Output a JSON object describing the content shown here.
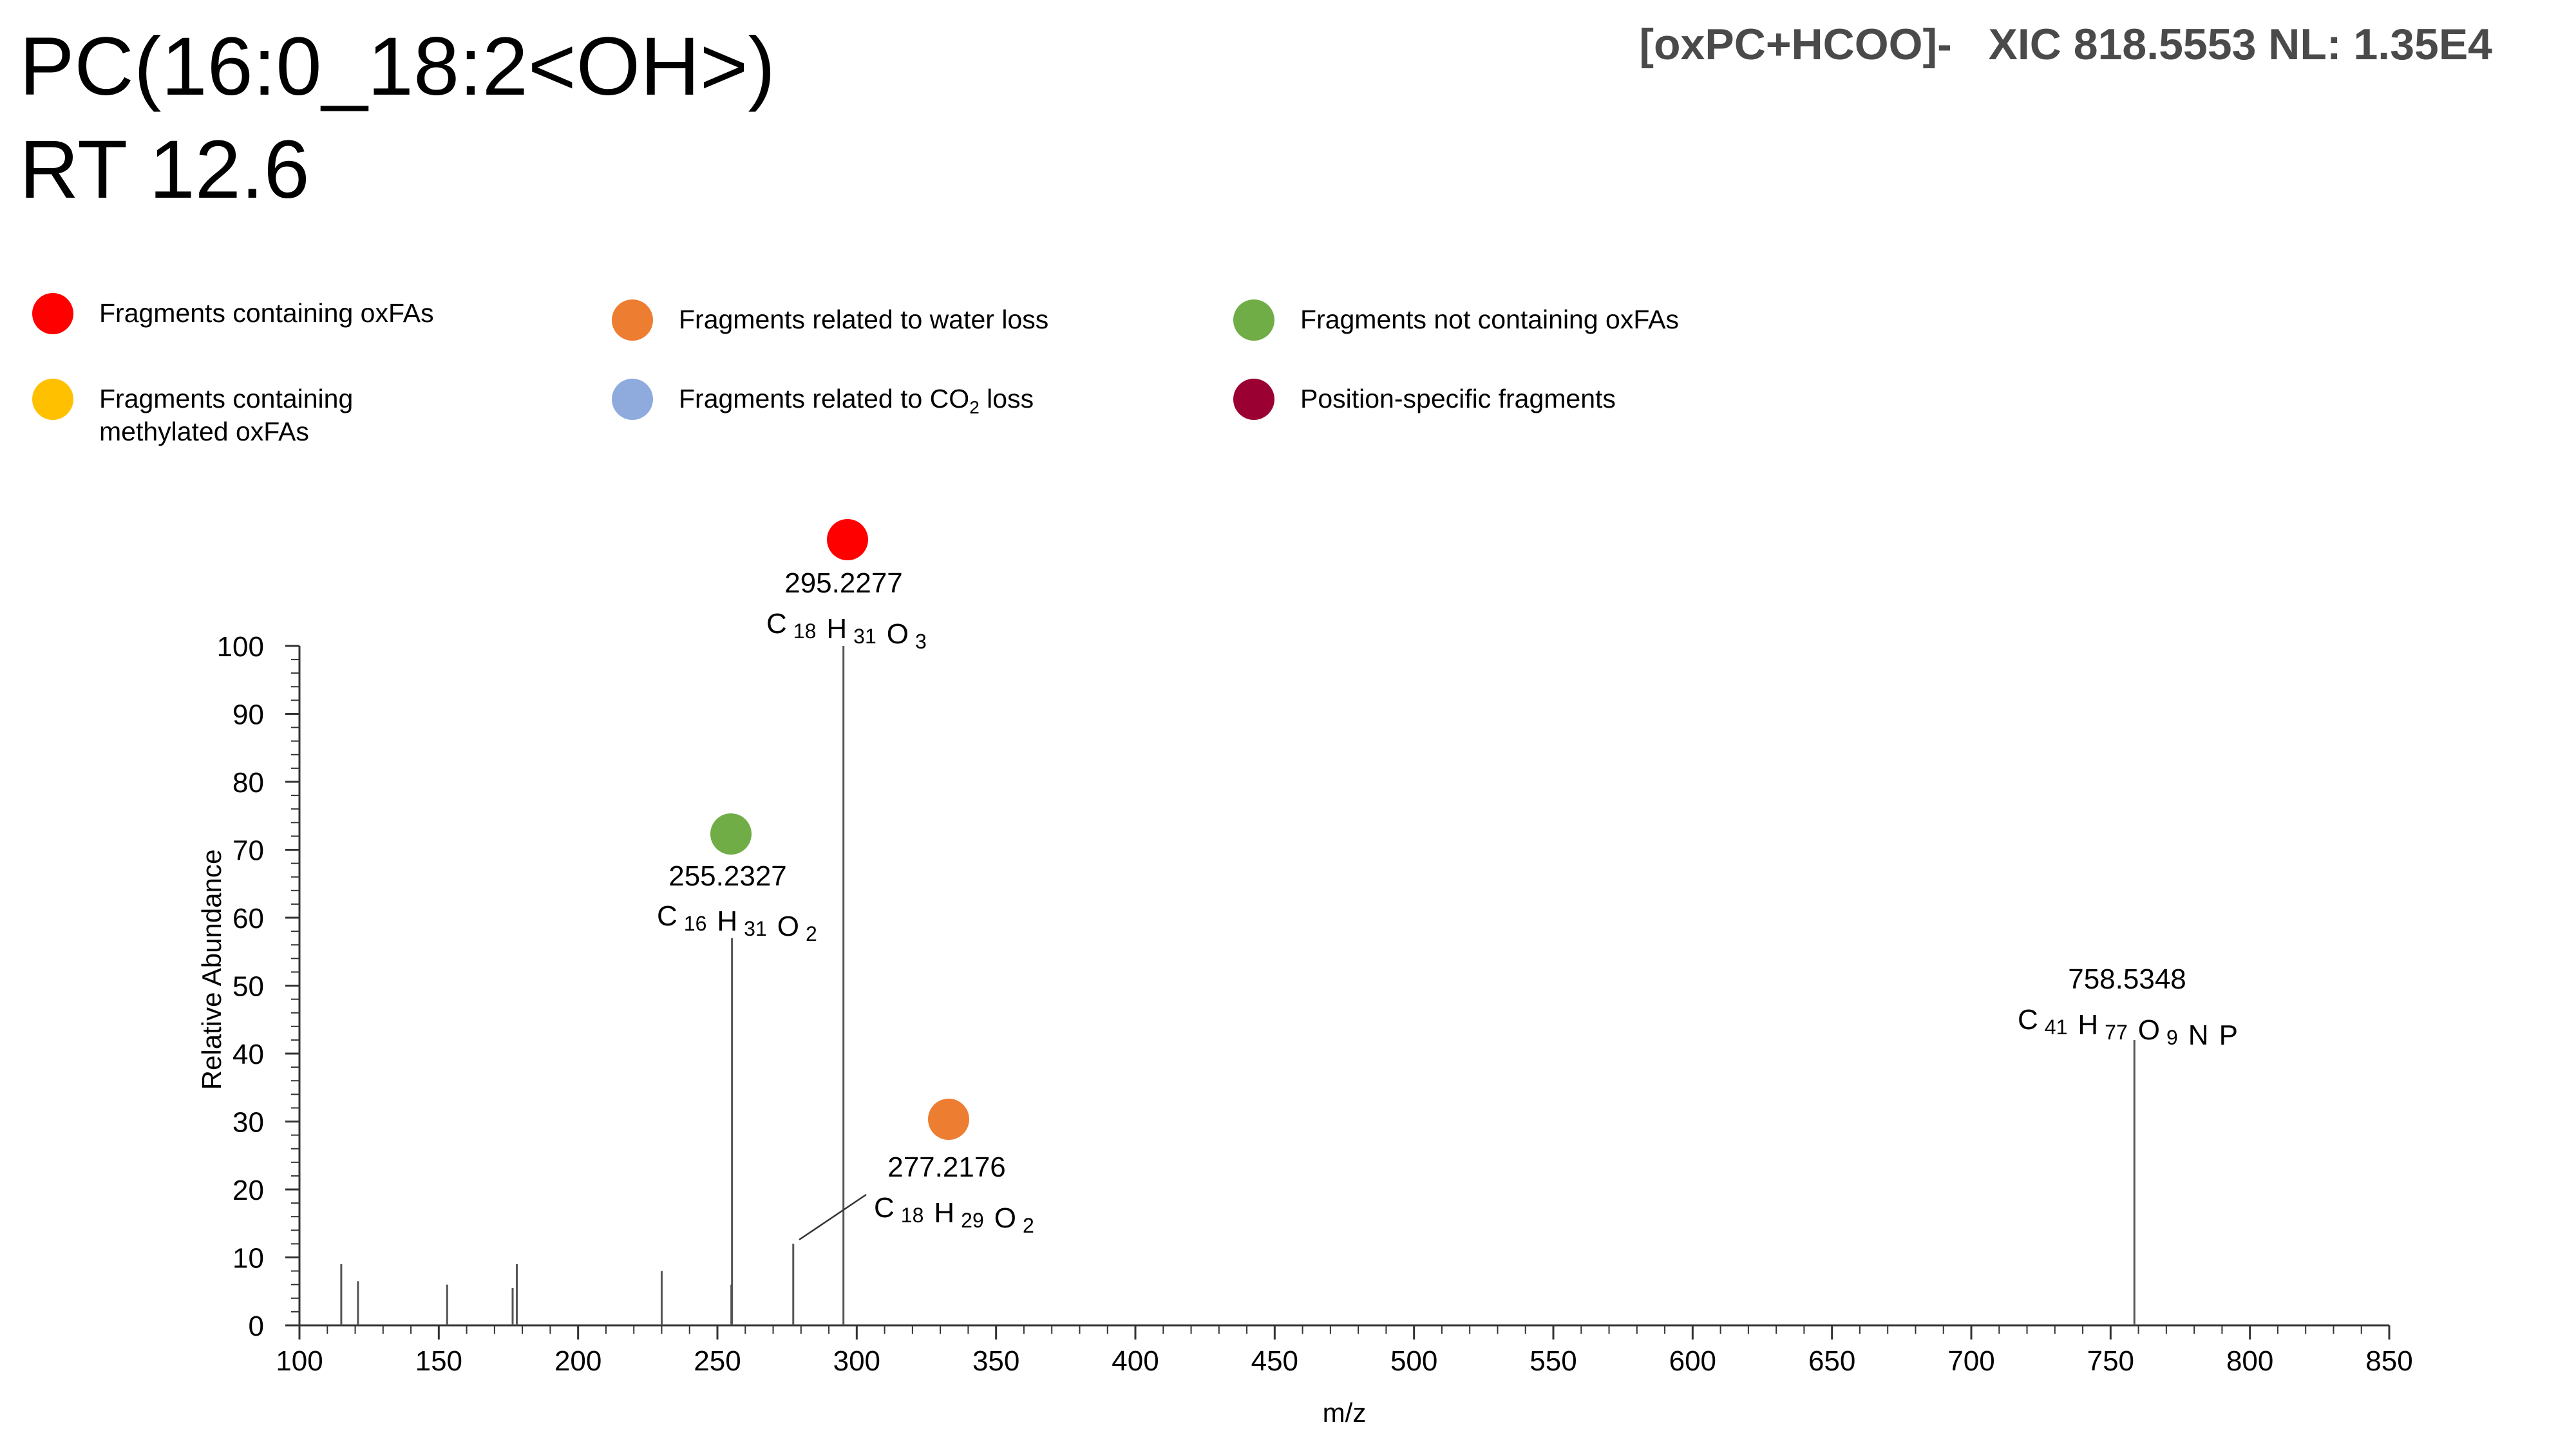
{
  "title": {
    "line1": "PC(16:0_18:2<OH>)",
    "line2": "RT 12.6"
  },
  "header": {
    "ion": "[oxPC+HCOO]-",
    "xic": "XIC 818.5553",
    "nl": "NL: 1.35E4"
  },
  "legend": [
    {
      "label": "Fragments containing oxFAs",
      "color": "#ff0000",
      "icon": "red-circle"
    },
    {
      "label": "Fragments related to water loss",
      "color": "#ed7d31",
      "icon": "orange-circle"
    },
    {
      "label": "Fragments not containing oxFAs",
      "color": "#70ad47",
      "icon": "green-circle"
    },
    {
      "label": "Fragments containing methylated oxFAs",
      "color": "#ffc000",
      "icon": "yellow-circle"
    },
    {
      "label_pre": "Fragments related to CO",
      "label_sub": "2",
      "label_post": " loss",
      "color": "#8faadc",
      "icon": "light-blue-circle"
    },
    {
      "label": "Position-specific fragments",
      "color": "#9b0033",
      "icon": "crimson-circle"
    }
  ],
  "chart_data": {
    "type": "bar",
    "xlabel": "m/z",
    "ylabel": "Relative Abundance",
    "xlim": [
      100,
      850
    ],
    "ylim": [
      0,
      100
    ],
    "xticks": [
      100,
      150,
      200,
      250,
      300,
      350,
      400,
      450,
      500,
      550,
      600,
      650,
      700,
      750,
      800,
      850
    ],
    "yticks": [
      0,
      10,
      20,
      30,
      40,
      50,
      60,
      70,
      80,
      90,
      100
    ],
    "peaks": [
      {
        "mz": 115.0,
        "intensity": 9
      },
      {
        "mz": 121.0,
        "intensity": 6.5
      },
      {
        "mz": 153.0,
        "intensity": 6
      },
      {
        "mz": 176.5,
        "intensity": 5.5
      },
      {
        "mz": 178.0,
        "intensity": 9
      },
      {
        "mz": 230.0,
        "intensity": 8
      },
      {
        "mz": 255.0,
        "intensity": 6
      },
      {
        "mz": 255.2327,
        "intensity": 57
      },
      {
        "mz": 277.2176,
        "intensity": 12
      },
      {
        "mz": 295.2277,
        "intensity": 100
      },
      {
        "mz": 758.5348,
        "intensity": 42
      }
    ],
    "annotations": [
      {
        "mz_label": "295.2277",
        "formula": [
          [
            "C",
            "18"
          ],
          [
            "H",
            "31"
          ],
          [
            "O",
            "3"
          ]
        ],
        "marker": "red",
        "peak_mz": 295.2277
      },
      {
        "mz_label": "255.2327",
        "formula": [
          [
            "C",
            "16"
          ],
          [
            "H",
            "31"
          ],
          [
            "O",
            "2"
          ]
        ],
        "marker": "green",
        "peak_mz": 255.2327
      },
      {
        "mz_label": "277.2176",
        "formula": [
          [
            "C",
            "18"
          ],
          [
            "H",
            "29"
          ],
          [
            "O",
            "2"
          ]
        ],
        "marker": "orange",
        "peak_mz": 277.2176
      },
      {
        "mz_label": "758.5348",
        "formula": [
          [
            "C",
            "41"
          ],
          [
            "H",
            "77"
          ],
          [
            "O",
            "9"
          ],
          [
            "N",
            ""
          ],
          [
            "P",
            ""
          ]
        ],
        "marker": "",
        "peak_mz": 758.5348
      }
    ],
    "marker_colors": {
      "red": "#ff0000",
      "green": "#70ad47",
      "orange": "#ed7d31"
    },
    "grid": false
  }
}
